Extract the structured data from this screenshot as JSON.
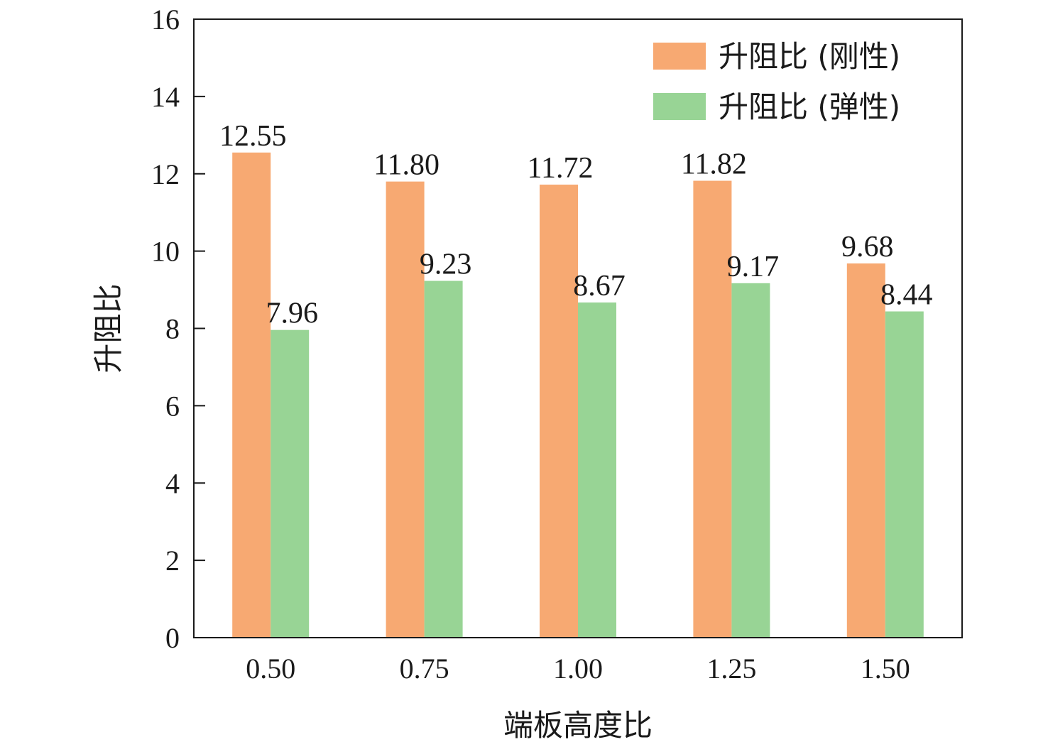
{
  "chart_data": {
    "type": "bar",
    "xlabel": "端板高度比",
    "ylabel": "升阻比",
    "categories": [
      "0.50",
      "0.75",
      "1.00",
      "1.25",
      "1.50"
    ],
    "ylim": [
      0,
      16
    ],
    "yticks": [
      0,
      2,
      4,
      6,
      8,
      10,
      12,
      14,
      16
    ],
    "grid": false,
    "legend_position": "top-right",
    "series": [
      {
        "name": "升阻比 (刚性)",
        "color": "#F7A972",
        "values": [
          12.55,
          11.8,
          11.72,
          11.82,
          9.68
        ],
        "labels": [
          "12.55",
          "11.80",
          "11.72",
          "11.82",
          "9.68"
        ]
      },
      {
        "name": "升阻比 (弹性)",
        "color": "#98D495",
        "values": [
          7.96,
          9.23,
          8.67,
          9.17,
          8.44
        ],
        "labels": [
          "7.96",
          "9.23",
          "8.67",
          "9.17",
          "8.44"
        ]
      }
    ]
  }
}
